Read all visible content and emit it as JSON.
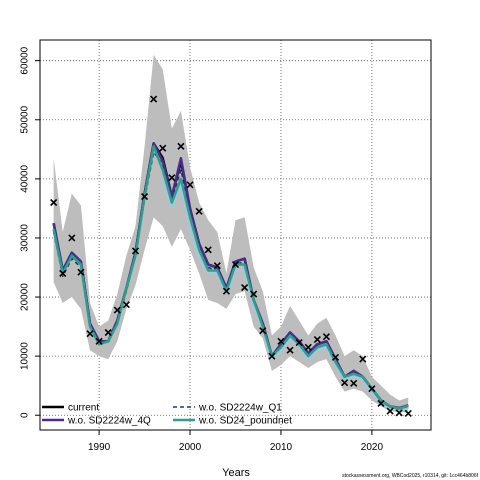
{
  "chart_data": {
    "type": "line",
    "xlabel": "Years",
    "ylabel": "",
    "xlim": [
      1983.5,
      2026.5
    ],
    "ylim": [
      -2500,
      63500
    ],
    "x_ticks": [
      1990,
      2000,
      2010,
      2020
    ],
    "y_ticks": [
      0,
      10000,
      20000,
      30000,
      40000,
      50000,
      60000
    ],
    "y_tick_labels": [
      "0",
      "10000",
      "20000",
      "30000",
      "40000",
      "50000",
      "60000"
    ],
    "grid": true,
    "legend_position": "bottom-left",
    "credit": "stockassessment.org, WBCod2025, r10314, git: 1cc464b806f",
    "x": [
      1985,
      1986,
      1987,
      1988,
      1989,
      1990,
      1991,
      1992,
      1993,
      1994,
      1995,
      1996,
      1997,
      1998,
      1999,
      2000,
      2001,
      2002,
      2003,
      2004,
      2005,
      2006,
      2007,
      2008,
      2009,
      2010,
      2011,
      2012,
      2013,
      2014,
      2015,
      2016,
      2017,
      2018,
      2019,
      2020,
      2021,
      2022,
      2023,
      2024
    ],
    "band": {
      "upper": [
        43500,
        31000,
        37500,
        35500,
        19000,
        15000,
        16000,
        20500,
        27000,
        32000,
        45500,
        61000,
        58500,
        48500,
        51500,
        42000,
        36000,
        33000,
        31000,
        24000,
        33000,
        33500,
        25000,
        21000,
        13500,
        15000,
        18500,
        16000,
        13500,
        15500,
        16500,
        13500,
        10000,
        11000,
        10000,
        6500,
        5000,
        3500,
        2500,
        3000
      ],
      "lower": [
        22500,
        19000,
        20000,
        18000,
        11000,
        10000,
        9500,
        12500,
        18000,
        22000,
        28000,
        33500,
        32000,
        28500,
        31500,
        28000,
        24000,
        19500,
        19000,
        18000,
        20500,
        21000,
        15000,
        13000,
        7500,
        8500,
        10000,
        9000,
        8000,
        9000,
        9500,
        6500,
        4000,
        4500,
        4000,
        2500,
        1500,
        700,
        500,
        500
      ]
    },
    "series": [
      {
        "name": "current",
        "values": [
          32500,
          24500,
          27500,
          26000,
          15500,
          12500,
          12500,
          16000,
          21500,
          27500,
          37500,
          46000,
          43500,
          37000,
          43000,
          35000,
          29000,
          25500,
          25000,
          21500,
          26000,
          26500,
          19500,
          15500,
          10000,
          12000,
          14000,
          12500,
          10500,
          12000,
          12500,
          9500,
          6500,
          7500,
          6500,
          4500,
          2500,
          1500,
          1200,
          1600
        ],
        "color": "#000000",
        "dash": ""
      },
      {
        "name": "w.o. SD2224w_4Q",
        "values": [
          32500,
          24500,
          27500,
          26000,
          15500,
          12500,
          12500,
          16000,
          21500,
          27500,
          37500,
          46000,
          43000,
          37000,
          43500,
          35000,
          29000,
          25500,
          25000,
          21500,
          26000,
          26500,
          19500,
          15500,
          10000,
          12000,
          14000,
          12500,
          10500,
          12000,
          12500,
          9500,
          6500,
          7500,
          6500,
          4500,
          2500,
          1500,
          1200,
          1700
        ],
        "color": "#4b2c8c",
        "dash": ""
      },
      {
        "name": "w.o. SD2224w_Q1",
        "values": [
          31000,
          23500,
          26500,
          25000,
          15000,
          12000,
          12500,
          15500,
          21000,
          27000,
          36500,
          44500,
          42500,
          36500,
          41500,
          34000,
          28500,
          25000,
          24500,
          21000,
          25500,
          26000,
          19500,
          15000,
          10000,
          11500,
          13500,
          12000,
          10000,
          11500,
          12000,
          9000,
          6500,
          7000,
          6500,
          4500,
          2500,
          1500,
          1100,
          1500
        ],
        "color": "#1e3a5f",
        "dash": "4,3"
      },
      {
        "name": "w.o. SD24_poundnet",
        "values": [
          31500,
          24000,
          27000,
          25500,
          15000,
          12000,
          12500,
          15500,
          21500,
          27000,
          37000,
          45500,
          41500,
          36000,
          40000,
          33500,
          28000,
          24500,
          24500,
          21000,
          25500,
          25500,
          19500,
          15000,
          10000,
          11500,
          13500,
          12000,
          10000,
          11500,
          12000,
          9000,
          6500,
          7000,
          6500,
          4500,
          2500,
          1500,
          1100,
          1600
        ],
        "color": "#2e9e8e",
        "dash": ""
      },
      {
        "name": "",
        "values": [
          null,
          null,
          null,
          null,
          null,
          null,
          null,
          null,
          null,
          null,
          null,
          null,
          40000,
          35000,
          39000,
          31000,
          26500,
          24000,
          24000,
          20500,
          24500,
          24500,
          18500,
          14500,
          9500,
          11000,
          13000,
          11500,
          9500,
          11000,
          11500,
          8500,
          6000,
          6500,
          6000,
          4000,
          2000,
          1200,
          900,
          1200
        ],
        "color": "#9ecae1",
        "dash": ""
      }
    ],
    "points": [
      36000,
      24000,
      30000,
      24200,
      13800,
      12500,
      14000,
      17800,
      18700,
      27800,
      37000,
      53500,
      45200,
      40200,
      45500,
      39000,
      34500,
      28000,
      25300,
      21000,
      25500,
      21600,
      20500,
      14300,
      10000,
      12500,
      11000,
      12300,
      11500,
      12800,
      13300,
      9800,
      5500,
      5400,
      9500,
      4500,
      2000,
      700,
      400,
      300
    ]
  }
}
